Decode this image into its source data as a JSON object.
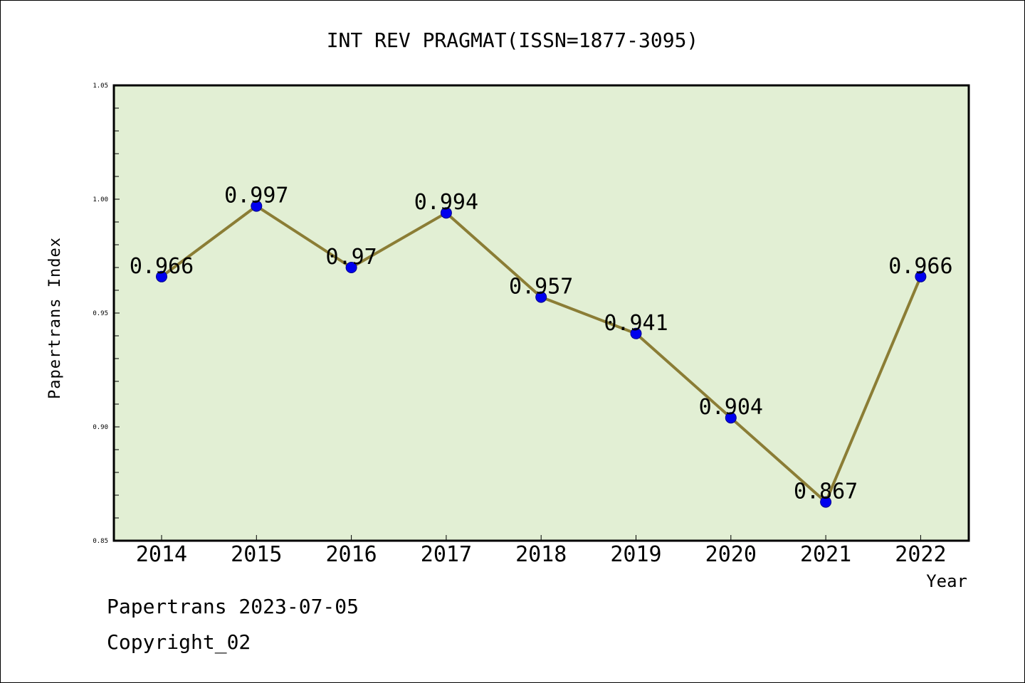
{
  "chart_data": {
    "type": "line",
    "title": "INT REV PRAGMAT(ISSN=1877-3095)",
    "xlabel": "Year",
    "ylabel": "Papertrans Index",
    "categories": [
      "2014",
      "2015",
      "2016",
      "2017",
      "2018",
      "2019",
      "2020",
      "2021",
      "2022"
    ],
    "series": [
      {
        "values": [
          0.966,
          0.997,
          0.97,
          0.994,
          0.957,
          0.941,
          0.904,
          0.867,
          0.966
        ],
        "data_labels": [
          "0.966",
          "0.997",
          "0.97",
          "0.994",
          "0.957",
          "0.941",
          "0.904",
          "0.867",
          "0.966"
        ]
      }
    ],
    "ylim": [
      0.85,
      1.05
    ],
    "yticks": [
      0.85,
      0.9,
      0.95,
      1.0,
      1.05
    ],
    "ytick_labels": [
      "0.85",
      "0.90",
      "0.95",
      "1.00",
      "1.05"
    ],
    "grid": false,
    "colors": {
      "plot_background": "#e2efd4",
      "line": "#8b7d35",
      "marker": "#0000ee",
      "marker_edge": "#00008b"
    }
  },
  "footer": {
    "line1": "Papertrans 2023-07-05",
    "line2": "Copyright_02"
  }
}
